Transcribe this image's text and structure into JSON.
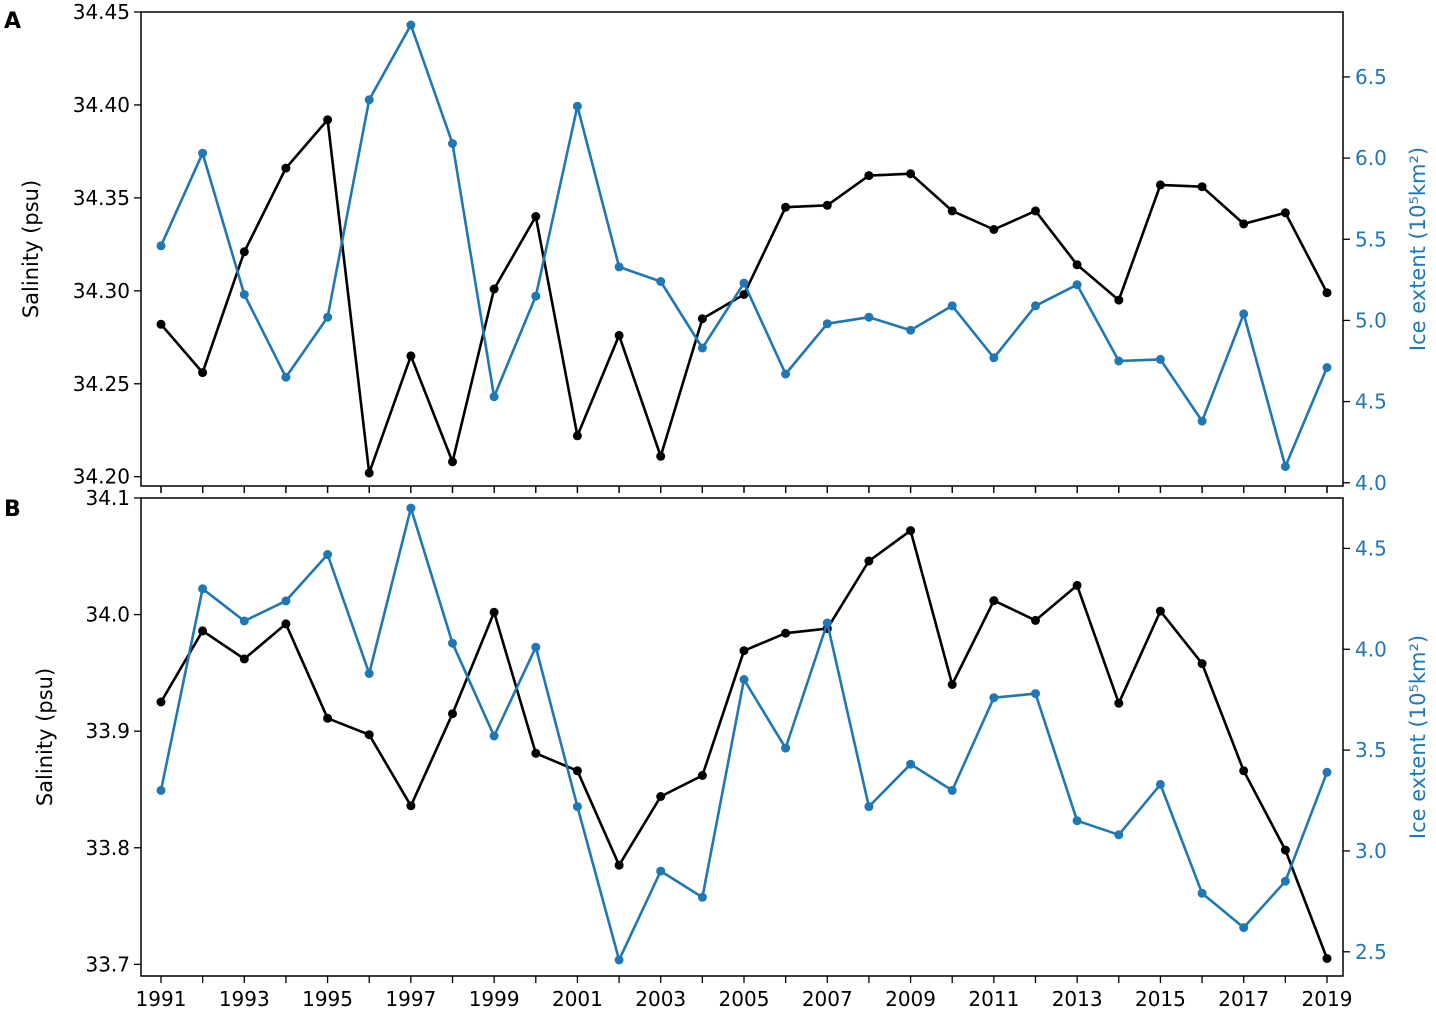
{
  "colors": {
    "salinity": "#000000",
    "ice": "#1f77b4",
    "axis": "#000000",
    "background": "#ffffff"
  },
  "chart_data": [
    {
      "type": "line",
      "panel_label": "A",
      "x": [
        1991,
        1992,
        1993,
        1994,
        1995,
        1996,
        1997,
        1998,
        1999,
        2000,
        2001,
        2002,
        2003,
        2004,
        2005,
        2006,
        2007,
        2008,
        2009,
        2010,
        2011,
        2012,
        2013,
        2014,
        2015,
        2016,
        2017,
        2018,
        2019
      ],
      "xticks": [
        "1991",
        "1993",
        "1995",
        "1997",
        "1999",
        "2001",
        "2003",
        "2005",
        "2007",
        "2009",
        "2011",
        "2013",
        "2015",
        "2017",
        "2019"
      ],
      "xlim": [
        1991,
        2019
      ],
      "ylabel_left": "Salinity (psu)",
      "ylabel_right": "Ice extent (10⁵km²)",
      "ylim_left": [
        34.195,
        34.45
      ],
      "yticks_left": [
        "34.20",
        "34.25",
        "34.30",
        "34.35",
        "34.40",
        "34.45"
      ],
      "ylim_right": [
        3.98,
        6.9
      ],
      "yticks_right": [
        "4.0",
        "4.5",
        "5.0",
        "5.5",
        "6.0",
        "6.5"
      ],
      "grid": false,
      "series": [
        {
          "axis": "left",
          "color": "#000000",
          "values": [
            34.282,
            34.256,
            34.321,
            34.366,
            34.392,
            34.202,
            34.265,
            34.208,
            34.301,
            34.34,
            34.222,
            34.276,
            34.211,
            34.285,
            34.298,
            34.345,
            34.346,
            34.362,
            34.363,
            34.343,
            34.333,
            34.343,
            34.314,
            34.295,
            34.357,
            34.356,
            34.336,
            34.342,
            34.299
          ]
        },
        {
          "axis": "right",
          "color": "#1f77b4",
          "values": [
            5.46,
            6.03,
            5.16,
            4.65,
            5.02,
            6.36,
            6.82,
            6.09,
            4.53,
            5.15,
            6.32,
            5.33,
            5.24,
            4.83,
            5.23,
            4.67,
            4.98,
            5.02,
            4.94,
            5.09,
            4.77,
            5.09,
            5.22,
            4.75,
            4.76,
            4.38,
            5.04,
            4.1,
            4.71
          ]
        }
      ]
    },
    {
      "type": "line",
      "panel_label": "B",
      "x": [
        1991,
        1992,
        1993,
        1994,
        1995,
        1996,
        1997,
        1998,
        1999,
        2000,
        2001,
        2002,
        2003,
        2004,
        2005,
        2006,
        2007,
        2008,
        2009,
        2010,
        2011,
        2012,
        2013,
        2014,
        2015,
        2016,
        2017,
        2018,
        2019
      ],
      "xticks": [
        "1991",
        "1993",
        "1995",
        "1997",
        "1999",
        "2001",
        "2003",
        "2005",
        "2007",
        "2009",
        "2011",
        "2013",
        "2015",
        "2017",
        "2019"
      ],
      "xlim": [
        1991,
        2019
      ],
      "ylabel_left": "Salinity (psu)",
      "ylabel_right": "Ice extent (10⁵km²)",
      "ylim_left": [
        33.69,
        34.1
      ],
      "yticks_left": [
        "33.7",
        "33.8",
        "33.9",
        "34.0",
        "34.1"
      ],
      "ylim_right": [
        2.38,
        4.75
      ],
      "yticks_right": [
        "2.5",
        "3.0",
        "3.5",
        "4.0",
        "4.5"
      ],
      "grid": false,
      "series": [
        {
          "axis": "left",
          "color": "#000000",
          "values": [
            33.925,
            33.986,
            33.962,
            33.992,
            33.911,
            33.897,
            33.836,
            33.915,
            34.002,
            33.881,
            33.866,
            33.785,
            33.844,
            33.862,
            33.969,
            33.984,
            33.988,
            34.046,
            34.072,
            33.94,
            34.012,
            33.995,
            34.025,
            33.924,
            34.003,
            33.958,
            33.866,
            33.798,
            33.705
          ]
        },
        {
          "axis": "right",
          "color": "#1f77b4",
          "values": [
            3.3,
            4.3,
            4.14,
            4.24,
            4.47,
            3.88,
            4.7,
            4.03,
            3.57,
            4.01,
            3.22,
            2.46,
            2.9,
            2.77,
            3.85,
            3.51,
            4.13,
            3.22,
            3.43,
            3.3,
            3.76,
            3.78,
            3.15,
            3.08,
            3.33,
            2.79,
            2.62,
            2.85,
            3.39
          ]
        }
      ]
    }
  ]
}
